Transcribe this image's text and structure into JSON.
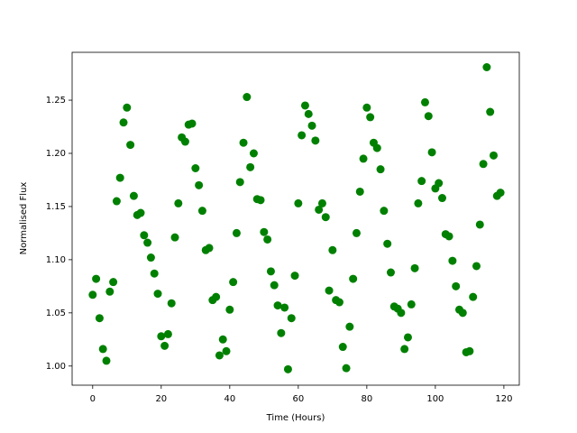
{
  "chart_data": {
    "type": "scatter",
    "xlabel": "Time (Hours)",
    "ylabel": "Normalised Flux",
    "color": "#008000",
    "x": [
      0,
      1,
      2,
      3,
      4,
      5,
      6,
      7,
      8,
      9,
      10,
      11,
      12,
      13,
      14,
      15,
      16,
      17,
      18,
      19,
      20,
      21,
      22,
      23,
      24,
      25,
      26,
      27,
      28,
      29,
      30,
      31,
      32,
      33,
      34,
      35,
      36,
      37,
      38,
      39,
      40,
      41,
      42,
      43,
      44,
      45,
      46,
      47,
      48,
      49,
      50,
      51,
      52,
      53,
      54,
      55,
      56,
      57,
      58,
      59,
      60,
      61,
      62,
      63,
      64,
      65,
      66,
      67,
      68,
      69,
      70,
      71,
      72,
      73,
      74,
      75,
      76,
      77,
      78,
      79,
      80,
      81,
      82,
      83,
      84,
      85,
      86,
      87,
      88,
      89,
      90,
      91,
      92,
      93,
      94,
      95,
      96,
      97,
      98,
      99,
      100,
      101,
      102,
      103,
      104,
      105,
      106,
      107,
      108,
      109,
      110,
      111,
      112,
      113,
      114,
      115,
      116,
      117,
      118,
      119
    ],
    "values": [
      1.067,
      1.082,
      1.045,
      1.016,
      1.005,
      1.07,
      1.079,
      1.155,
      1.177,
      1.229,
      1.243,
      1.208,
      1.16,
      1.142,
      1.144,
      1.123,
      1.116,
      1.102,
      1.087,
      1.068,
      1.028,
      1.019,
      1.03,
      1.059,
      1.121,
      1.153,
      1.215,
      1.211,
      1.227,
      1.228,
      1.186,
      1.17,
      1.146,
      1.109,
      1.111,
      1.062,
      1.065,
      1.01,
      1.025,
      1.014,
      1.053,
      1.079,
      1.125,
      1.173,
      1.21,
      1.253,
      1.187,
      1.2,
      1.157,
      1.156,
      1.126,
      1.119,
      1.089,
      1.076,
      1.057,
      1.031,
      1.055,
      0.997,
      1.045,
      1.085,
      1.153,
      1.217,
      1.245,
      1.237,
      1.226,
      1.212,
      1.147,
      1.153,
      1.14,
      1.071,
      1.109,
      1.062,
      1.06,
      1.018,
      0.998,
      1.037,
      1.082,
      1.125,
      1.164,
      1.195,
      1.243,
      1.234,
      1.21,
      1.205,
      1.185,
      1.146,
      1.115,
      1.088,
      1.056,
      1.054,
      1.05,
      1.016,
      1.027,
      1.058,
      1.092,
      1.153,
      1.174,
      1.248,
      1.235,
      1.201,
      1.167,
      1.172,
      1.158,
      1.124,
      1.122,
      1.099,
      1.075,
      1.053,
      1.05,
      1.013,
      1.014,
      1.065,
      1.094,
      1.133,
      1.19,
      1.281,
      1.239,
      1.198,
      1.16,
      1.163
    ],
    "xlim": [
      -6,
      124.5
    ],
    "ylim": [
      0.982,
      1.295
    ],
    "xticks": [
      0,
      20,
      40,
      60,
      80,
      100,
      120
    ],
    "yticks": [
      {
        "value": 1.0,
        "label": "1.00"
      },
      1.05,
      {
        "value": 1.1,
        "label": "1.10"
      },
      1.15,
      {
        "value": 1.2,
        "label": "1.20"
      },
      1.25
    ]
  }
}
